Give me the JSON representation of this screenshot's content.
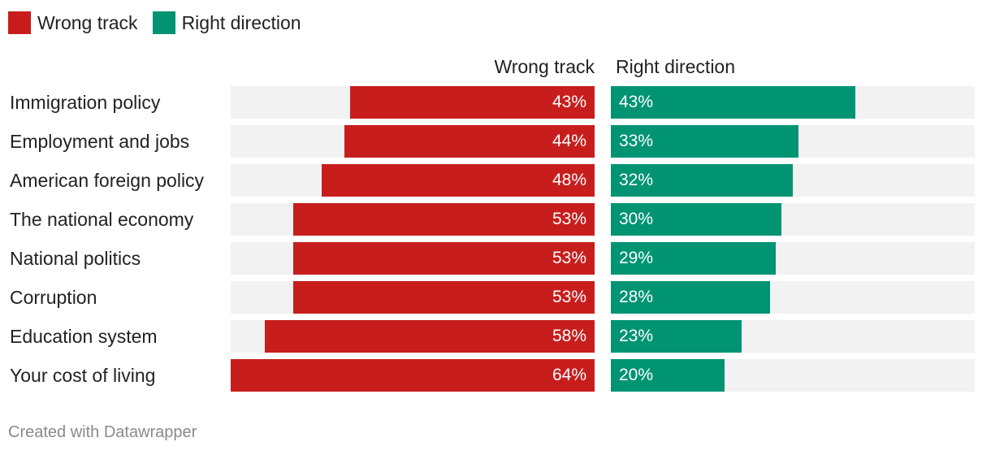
{
  "chart_data": {
    "type": "bar",
    "orientation": "horizontal",
    "title": "",
    "legend": [
      {
        "name": "Wrong track",
        "color": "#c71e1d"
      },
      {
        "name": "Right direction",
        "color": "#009473"
      }
    ],
    "column_headers": {
      "left": "Wrong track",
      "right": "Right direction"
    },
    "categories": [
      "Immigration policy",
      "Employment and jobs",
      "American foreign policy",
      "The national economy",
      "National politics",
      "Corruption",
      "Education system",
      "Your cost of living"
    ],
    "series": [
      {
        "name": "Wrong track",
        "values": [
          43,
          44,
          48,
          53,
          53,
          53,
          58,
          64
        ],
        "labels": [
          "43%",
          "44%",
          "48%",
          "53%",
          "53%",
          "53%",
          "58%",
          "64%"
        ]
      },
      {
        "name": "Right direction",
        "values": [
          43,
          33,
          32,
          30,
          29,
          28,
          23,
          20
        ],
        "labels": [
          "43%",
          "33%",
          "32%",
          "30%",
          "29%",
          "28%",
          "23%",
          "20%"
        ]
      }
    ],
    "xlim": [
      0,
      64
    ],
    "value_suffix": "%"
  },
  "footer": {
    "credit": "Created with Datawrapper"
  }
}
